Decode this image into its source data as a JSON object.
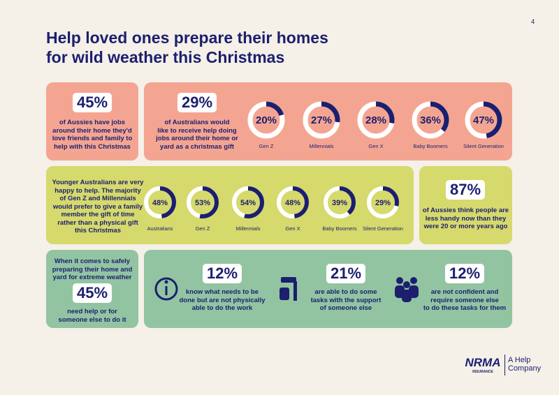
{
  "page_number": "4",
  "title": [
    "Help loved ones prepare their homes",
    "for wild weather this Christmas"
  ],
  "panel1": {
    "stat": "45%",
    "text": [
      "of Aussies have jobs",
      "around their home they'd",
      "love friends and family to",
      "help with this Christmas"
    ]
  },
  "panel2": {
    "stat": "29%",
    "text": [
      "of Australians would",
      "like to receive help doing",
      "jobs around their home or",
      "yard as a christmas gift"
    ],
    "rings": [
      {
        "value": 20,
        "label": "20%",
        "name": "Gen Z"
      },
      {
        "value": 27,
        "label": "27%",
        "name": "Millennials"
      },
      {
        "value": 28,
        "label": "28%",
        "name": "Gen X"
      },
      {
        "value": 36,
        "label": "36%",
        "name": "Baby Boomers"
      },
      {
        "value": 47,
        "label": "47%",
        "name": "Silent Generation"
      }
    ]
  },
  "panel3": {
    "text": [
      "Younger Australians are very",
      "happy to help. The majority",
      "of Gen Z and Millennials",
      "would prefer to give a family",
      "member the gift of time",
      "rather than a physical gift",
      "this Christmas"
    ],
    "rings": [
      {
        "value": 48,
        "label": "48%",
        "name": "Australians"
      },
      {
        "value": 53,
        "label": "53%",
        "name": "Gen Z"
      },
      {
        "value": 54,
        "label": "54%",
        "name": "Millennials"
      },
      {
        "value": 48,
        "label": "48%",
        "name": "Gen X"
      },
      {
        "value": 39,
        "label": "39%",
        "name": "Baby Boomers"
      },
      {
        "value": 29,
        "label": "29%",
        "name": "Silent Generation"
      }
    ]
  },
  "panel4": {
    "stat": "87%",
    "text": [
      "of Aussies think people are",
      "less handy now than they",
      "were 20 or more years ago"
    ]
  },
  "panel5": {
    "intro": [
      "When it comes to safely",
      "preparing their home and",
      "yard for extreme weather"
    ],
    "stat": "45%",
    "text": [
      "need help or for",
      "someone else to do it"
    ]
  },
  "panel6": {
    "items": [
      {
        "stat": "12%",
        "text": [
          "know what needs to be",
          "done but are not physically",
          "able to do the work"
        ]
      },
      {
        "stat": "21%",
        "text": [
          "are able to do some",
          "tasks with the support",
          "of someone else"
        ]
      },
      {
        "stat": "12%",
        "text": [
          "are not confident and",
          "require someone else",
          "to do these tasks for them"
        ]
      }
    ]
  },
  "logo": {
    "brand": "NRMA",
    "sub": "INSURANCE",
    "tagline": [
      "A Help",
      "Company"
    ]
  }
}
